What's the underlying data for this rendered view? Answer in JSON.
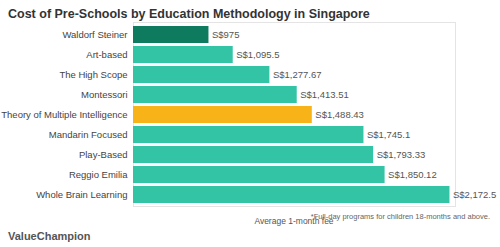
{
  "chart_data": {
    "type": "bar",
    "orientation": "horizontal",
    "title": "Cost of Pre-Schools by Education Methodology in Singapore",
    "x_label": "Average 1-month fee",
    "footnote": "*Full-day programs for children 18-months and above.",
    "logo": "ValueChampion",
    "categories": [
      "Waldorf Steiner",
      "Art-based",
      "The High Scope",
      "Montessori",
      "Theory of Multiple Intelligence",
      "Mandarin Focused",
      "Play-Based",
      "Reggio Emilia",
      "Whole Brain Learning"
    ],
    "values": [
      975,
      1095.5,
      1277.67,
      1413.51,
      1488.43,
      1745.1,
      1793.33,
      1850.12,
      2172.5
    ],
    "value_labels": [
      "S$975",
      "S$1,095.5",
      "S$1,277.67",
      "S$1,413.51",
      "S$1,488.43",
      "S$1,745.1",
      "S$1,793.33",
      "S$1,850.12",
      "S$2,172.5"
    ],
    "colors": [
      "#0f7b5e",
      "#33c4a6",
      "#33c4a6",
      "#33c4a6",
      "#f7b318",
      "#33c4a6",
      "#33c4a6",
      "#33c4a6",
      "#33c4a6"
    ],
    "xlim": [
      600,
      2200
    ],
    "xticks": [],
    "tick_labels": "y",
    "grid": false,
    "data_labels": true
  }
}
